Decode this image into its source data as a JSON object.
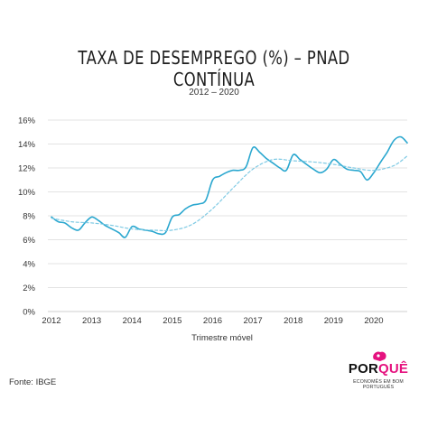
{
  "title": "TAXA DE DESEMPREGO (%) – PNAD CONTÍNUA",
  "subtitle": "2012 – 2020",
  "source": "Fonte: IBGE",
  "logo": {
    "text_left": "POR",
    "text_right": "QUÊ",
    "tagline": "ECONOMÊS EM BOM PORTUGUÊS"
  },
  "colors": {
    "series": "#2aa7cf",
    "trend": "#7fcae4",
    "grid": "#e3e3e3",
    "logo_accent": "#e5127f"
  },
  "chart_data": {
    "type": "line",
    "title": "TAXA DE DESEMPREGO (%) – PNAD CONTÍNUA",
    "subtitle": "2012 – 2020",
    "xlabel": "Trimestre móvel",
    "ylabel": "",
    "ylim": [
      0,
      16
    ],
    "xlim": [
      2012.0,
      2020.83
    ],
    "grid": "horizontal",
    "yticks": [
      0,
      2,
      4,
      6,
      8,
      10,
      12,
      14,
      16
    ],
    "ytick_labels": [
      "0%",
      "2%",
      "4%",
      "6%",
      "8%",
      "10%",
      "12%",
      "14%",
      "16%"
    ],
    "xticks": [
      2012,
      2013,
      2014,
      2015,
      2016,
      2017,
      2018,
      2019,
      2020
    ],
    "xtick_labels": [
      "2012",
      "2013",
      "2014",
      "2015",
      "2016",
      "2017",
      "2018",
      "2019",
      "2020"
    ],
    "series": [
      {
        "style": "solid",
        "x": [
          2012.0,
          2012.17,
          2012.33,
          2012.5,
          2012.67,
          2012.83,
          2013.0,
          2013.17,
          2013.33,
          2013.5,
          2013.67,
          2013.83,
          2014.0,
          2014.17,
          2014.33,
          2014.5,
          2014.67,
          2014.83,
          2015.0,
          2015.17,
          2015.33,
          2015.5,
          2015.67,
          2015.83,
          2016.0,
          2016.17,
          2016.33,
          2016.5,
          2016.67,
          2016.83,
          2017.0,
          2017.17,
          2017.33,
          2017.5,
          2017.67,
          2017.83,
          2018.0,
          2018.17,
          2018.33,
          2018.5,
          2018.67,
          2018.83,
          2019.0,
          2019.17,
          2019.33,
          2019.5,
          2019.67,
          2019.83,
          2020.0,
          2020.17,
          2020.33,
          2020.5,
          2020.67,
          2020.83
        ],
        "y": [
          7.9,
          7.5,
          7.4,
          7.0,
          6.8,
          7.4,
          7.9,
          7.6,
          7.2,
          6.9,
          6.6,
          6.2,
          7.1,
          6.9,
          6.8,
          6.7,
          6.5,
          6.6,
          7.9,
          8.1,
          8.6,
          8.9,
          9.0,
          9.3,
          11.0,
          11.3,
          11.6,
          11.8,
          11.8,
          12.1,
          13.7,
          13.3,
          12.8,
          12.4,
          12.0,
          11.8,
          13.1,
          12.7,
          12.3,
          11.9,
          11.6,
          11.9,
          12.7,
          12.3,
          11.9,
          11.8,
          11.7,
          11.0,
          11.6,
          12.5,
          13.3,
          14.3,
          14.6,
          14.1
        ]
      },
      {
        "style": "dashed",
        "x": [
          2012.0,
          2012.5,
          2013.0,
          2013.5,
          2014.0,
          2014.5,
          2015.0,
          2015.5,
          2016.0,
          2016.5,
          2017.0,
          2017.5,
          2018.0,
          2018.5,
          2019.0,
          2019.5,
          2020.0,
          2020.5,
          2020.83
        ],
        "y": [
          7.8,
          7.5,
          7.4,
          7.2,
          6.9,
          6.8,
          6.8,
          7.3,
          8.6,
          10.3,
          11.9,
          12.7,
          12.6,
          12.5,
          12.3,
          12.0,
          11.8,
          12.2,
          13.0
        ]
      }
    ]
  }
}
